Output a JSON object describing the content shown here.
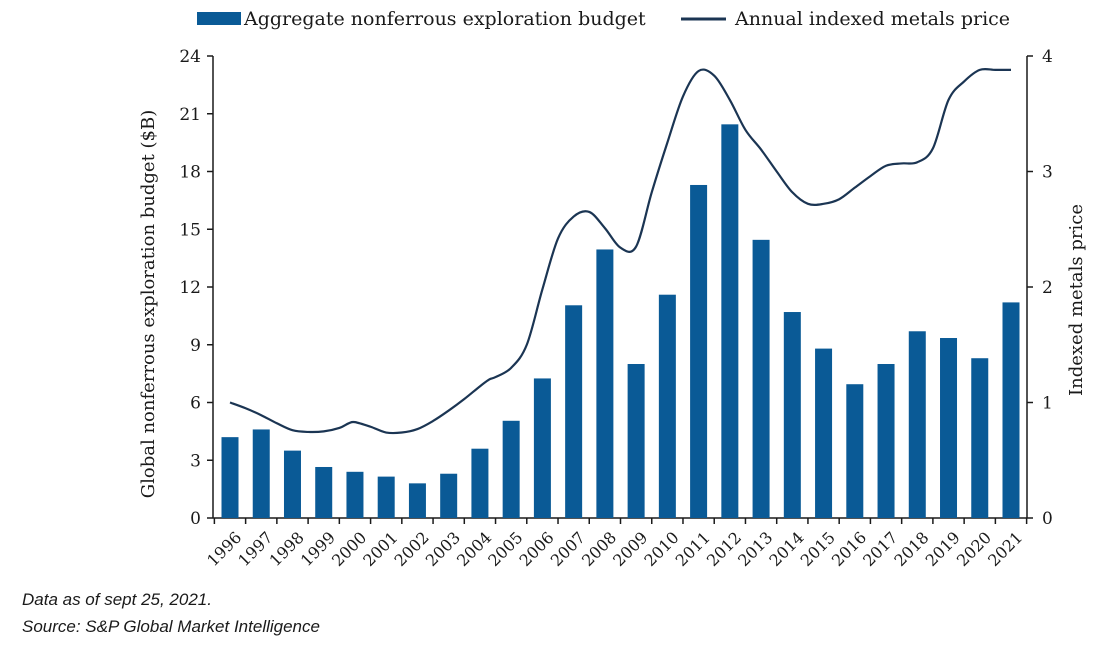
{
  "chart_data": {
    "type": "bar+line",
    "categories": [
      "1996",
      "1997",
      "1998",
      "1999",
      "2000",
      "2001",
      "2002",
      "2003",
      "2004",
      "2005",
      "2006",
      "2007",
      "2008",
      "2009",
      "2010",
      "2011",
      "2012",
      "2013",
      "2014",
      "2015",
      "2016",
      "2017",
      "2018",
      "2019",
      "2020",
      "2021"
    ],
    "series": [
      {
        "name": "Aggregate nonferrous exploration budget",
        "type": "bar",
        "axis": "left",
        "color": "#0a5a96",
        "values": [
          4.2,
          4.6,
          3.5,
          2.65,
          2.4,
          2.15,
          1.8,
          2.3,
          3.6,
          5.05,
          7.25,
          11.05,
          13.95,
          8.0,
          11.6,
          17.3,
          20.45,
          14.45,
          10.7,
          8.8,
          6.95,
          8.0,
          9.7,
          9.35,
          8.3,
          11.2
        ]
      },
      {
        "name": "Annual indexed metals price",
        "type": "line",
        "axis": "right",
        "color": "#1b3553",
        "x": [
          1996,
          1996.5,
          1997,
          1997.5,
          1998,
          1998.5,
          1999,
          1999.5,
          1999.8,
          2000,
          2000.5,
          2001,
          2001.5,
          2002,
          2002.5,
          2003,
          2003.5,
          2004,
          2004.3,
          2004.5,
          2005,
          2005.5,
          2006,
          2006.5,
          2007,
          2007.5,
          2008,
          2008.5,
          2009,
          2009.5,
          2010,
          2010.5,
          2011,
          2011.5,
          2012,
          2012.5,
          2013,
          2013.5,
          2014,
          2014.5,
          2015,
          2015.5,
          2016,
          2016.5,
          2017,
          2017.5,
          2018,
          2018.5,
          2019,
          2019.5,
          2020,
          2020.5,
          2021
        ],
        "values": [
          1.0,
          0.95,
          0.89,
          0.82,
          0.76,
          0.745,
          0.75,
          0.78,
          0.82,
          0.83,
          0.79,
          0.74,
          0.74,
          0.77,
          0.84,
          0.93,
          1.03,
          1.14,
          1.2,
          1.22,
          1.3,
          1.5,
          1.98,
          2.42,
          2.61,
          2.65,
          2.51,
          2.34,
          2.35,
          2.82,
          3.25,
          3.65,
          3.87,
          3.83,
          3.62,
          3.36,
          3.19,
          3.0,
          2.82,
          2.72,
          2.72,
          2.76,
          2.86,
          2.96,
          3.05,
          3.07,
          3.08,
          3.2,
          3.62,
          3.78,
          3.88,
          3.88,
          3.88
        ]
      }
    ],
    "legend": {
      "position": "top",
      "bar_label": "Aggregate nonferrous exploration budget",
      "line_label": "Annual indexed metals price"
    },
    "y_left": {
      "label": "Global nonferrous exploration budget ($B)",
      "range": [
        0,
        24
      ],
      "ticks": [
        "0",
        "3",
        "6",
        "9",
        "12",
        "15",
        "18",
        "21",
        "24"
      ]
    },
    "y_right": {
      "label": "Indexed metals price",
      "range": [
        0,
        4
      ],
      "ticks": [
        "0",
        "1",
        "2",
        "3",
        "4"
      ]
    },
    "grid": false
  },
  "notes": {
    "data_as_of": "Data as of sept 25, 2021.",
    "source": "Source: S&P Global Market Intelligence"
  }
}
